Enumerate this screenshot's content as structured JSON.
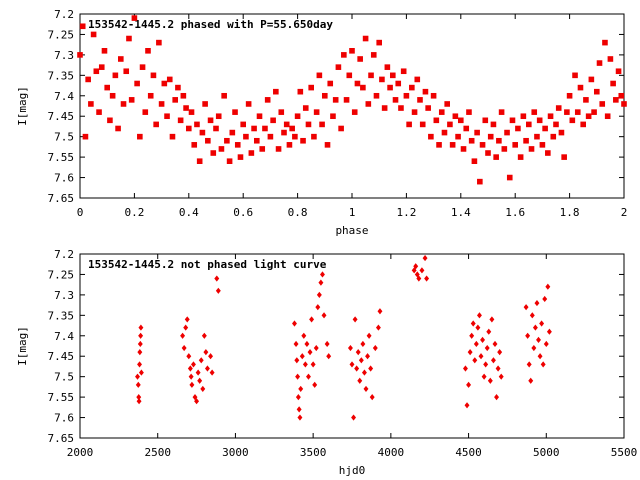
{
  "colors": {
    "points": "#ee0000",
    "frame": "#000000",
    "background": "#ffffff"
  },
  "chart_data": [
    {
      "type": "scatter",
      "title": "153542-1445.2 phased with P=55.650day",
      "xlabel": "phase",
      "ylabel": "I[mag]",
      "xlim": [
        0,
        2
      ],
      "ylim": [
        7.2,
        7.65
      ],
      "y_inverted": true,
      "grid": false,
      "x_ticks": [
        "0",
        "0.2",
        "0.4",
        "0.6",
        "0.8",
        "1",
        "1.2",
        "1.4",
        "1.6",
        "1.8",
        "2"
      ],
      "y_ticks": [
        "7.2",
        "7.25",
        "7.3",
        "7.35",
        "7.4",
        "7.45",
        "7.5",
        "7.55",
        "7.6",
        "7.65"
      ],
      "marker": "filled-square",
      "points": [
        [
          0.0,
          7.3
        ],
        [
          0.01,
          7.23
        ],
        [
          0.02,
          7.5
        ],
        [
          0.03,
          7.36
        ],
        [
          0.04,
          7.42
        ],
        [
          0.05,
          7.25
        ],
        [
          0.06,
          7.34
        ],
        [
          0.07,
          7.44
        ],
        [
          0.08,
          7.33
        ],
        [
          0.09,
          7.29
        ],
        [
          0.1,
          7.38
        ],
        [
          0.11,
          7.46
        ],
        [
          0.12,
          7.4
        ],
        [
          0.13,
          7.35
        ],
        [
          0.14,
          7.48
        ],
        [
          0.15,
          7.31
        ],
        [
          0.16,
          7.42
        ],
        [
          0.17,
          7.34
        ],
        [
          0.18,
          7.26
        ],
        [
          0.19,
          7.41
        ],
        [
          0.2,
          7.21
        ],
        [
          0.21,
          7.37
        ],
        [
          0.22,
          7.5
        ],
        [
          0.23,
          7.33
        ],
        [
          0.24,
          7.44
        ],
        [
          0.25,
          7.29
        ],
        [
          0.26,
          7.4
        ],
        [
          0.27,
          7.35
        ],
        [
          0.28,
          7.47
        ],
        [
          0.29,
          7.27
        ],
        [
          0.3,
          7.42
        ],
        [
          0.31,
          7.37
        ],
        [
          0.32,
          7.45
        ],
        [
          0.33,
          7.36
        ],
        [
          0.34,
          7.5
        ],
        [
          0.35,
          7.41
        ],
        [
          0.36,
          7.38
        ],
        [
          0.37,
          7.46
        ],
        [
          0.38,
          7.4
        ],
        [
          0.39,
          7.43
        ],
        [
          0.4,
          7.48
        ],
        [
          0.41,
          7.44
        ],
        [
          0.42,
          7.52
        ],
        [
          0.43,
          7.47
        ],
        [
          0.44,
          7.56
        ],
        [
          0.45,
          7.49
        ],
        [
          0.46,
          7.42
        ],
        [
          0.47,
          7.51
        ],
        [
          0.48,
          7.46
        ],
        [
          0.49,
          7.54
        ],
        [
          0.5,
          7.48
        ],
        [
          0.51,
          7.45
        ],
        [
          0.52,
          7.53
        ],
        [
          0.53,
          7.4
        ],
        [
          0.54,
          7.51
        ],
        [
          0.55,
          7.56
        ],
        [
          0.56,
          7.49
        ],
        [
          0.57,
          7.44
        ],
        [
          0.58,
          7.52
        ],
        [
          0.59,
          7.55
        ],
        [
          0.6,
          7.47
        ],
        [
          0.61,
          7.5
        ],
        [
          0.62,
          7.42
        ],
        [
          0.63,
          7.54
        ],
        [
          0.64,
          7.48
        ],
        [
          0.65,
          7.51
        ],
        [
          0.66,
          7.45
        ],
        [
          0.67,
          7.53
        ],
        [
          0.68,
          7.48
        ],
        [
          0.69,
          7.41
        ],
        [
          0.7,
          7.5
        ],
        [
          0.71,
          7.46
        ],
        [
          0.72,
          7.39
        ],
        [
          0.73,
          7.53
        ],
        [
          0.74,
          7.44
        ],
        [
          0.75,
          7.49
        ],
        [
          0.76,
          7.47
        ],
        [
          0.77,
          7.52
        ],
        [
          0.78,
          7.48
        ],
        [
          0.79,
          7.5
        ],
        [
          0.8,
          7.45
        ],
        [
          0.81,
          7.39
        ],
        [
          0.82,
          7.51
        ],
        [
          0.83,
          7.43
        ],
        [
          0.84,
          7.47
        ],
        [
          0.85,
          7.38
        ],
        [
          0.86,
          7.5
        ],
        [
          0.87,
          7.44
        ],
        [
          0.88,
          7.35
        ],
        [
          0.89,
          7.47
        ],
        [
          0.9,
          7.4
        ],
        [
          0.91,
          7.52
        ],
        [
          0.92,
          7.37
        ],
        [
          0.93,
          7.45
        ],
        [
          0.94,
          7.41
        ],
        [
          0.95,
          7.33
        ],
        [
          0.96,
          7.48
        ],
        [
          0.97,
          7.3
        ],
        [
          0.98,
          7.41
        ],
        [
          0.99,
          7.35
        ],
        [
          1.0,
          7.29
        ],
        [
          1.01,
          7.44
        ],
        [
          1.02,
          7.37
        ],
        [
          1.03,
          7.31
        ],
        [
          1.04,
          7.38
        ],
        [
          1.05,
          7.26
        ],
        [
          1.06,
          7.42
        ],
        [
          1.07,
          7.35
        ],
        [
          1.08,
          7.3
        ],
        [
          1.09,
          7.4
        ],
        [
          1.1,
          7.27
        ],
        [
          1.11,
          7.36
        ],
        [
          1.12,
          7.43
        ],
        [
          1.13,
          7.33
        ],
        [
          1.14,
          7.38
        ],
        [
          1.15,
          7.35
        ],
        [
          1.16,
          7.41
        ],
        [
          1.17,
          7.37
        ],
        [
          1.18,
          7.43
        ],
        [
          1.19,
          7.34
        ],
        [
          1.2,
          7.4
        ],
        [
          1.21,
          7.47
        ],
        [
          1.22,
          7.38
        ],
        [
          1.23,
          7.44
        ],
        [
          1.24,
          7.36
        ],
        [
          1.25,
          7.41
        ],
        [
          1.26,
          7.47
        ],
        [
          1.27,
          7.39
        ],
        [
          1.28,
          7.43
        ],
        [
          1.29,
          7.5
        ],
        [
          1.3,
          7.4
        ],
        [
          1.31,
          7.46
        ],
        [
          1.32,
          7.52
        ],
        [
          1.33,
          7.44
        ],
        [
          1.34,
          7.49
        ],
        [
          1.35,
          7.42
        ],
        [
          1.36,
          7.47
        ],
        [
          1.37,
          7.52
        ],
        [
          1.38,
          7.45
        ],
        [
          1.39,
          7.5
        ],
        [
          1.4,
          7.46
        ],
        [
          1.41,
          7.53
        ],
        [
          1.42,
          7.48
        ],
        [
          1.43,
          7.44
        ],
        [
          1.44,
          7.51
        ],
        [
          1.45,
          7.56
        ],
        [
          1.46,
          7.49
        ],
        [
          1.47,
          7.61
        ],
        [
          1.48,
          7.52
        ],
        [
          1.49,
          7.46
        ],
        [
          1.5,
          7.54
        ],
        [
          1.51,
          7.5
        ],
        [
          1.52,
          7.47
        ],
        [
          1.53,
          7.55
        ],
        [
          1.54,
          7.51
        ],
        [
          1.55,
          7.44
        ],
        [
          1.56,
          7.53
        ],
        [
          1.57,
          7.49
        ],
        [
          1.58,
          7.6
        ],
        [
          1.59,
          7.46
        ],
        [
          1.6,
          7.52
        ],
        [
          1.61,
          7.48
        ],
        [
          1.62,
          7.55
        ],
        [
          1.63,
          7.45
        ],
        [
          1.64,
          7.51
        ],
        [
          1.65,
          7.47
        ],
        [
          1.66,
          7.53
        ],
        [
          1.67,
          7.44
        ],
        [
          1.68,
          7.5
        ],
        [
          1.69,
          7.46
        ],
        [
          1.7,
          7.52
        ],
        [
          1.71,
          7.48
        ],
        [
          1.72,
          7.54
        ],
        [
          1.73,
          7.45
        ],
        [
          1.74,
          7.5
        ],
        [
          1.75,
          7.47
        ],
        [
          1.76,
          7.43
        ],
        [
          1.77,
          7.49
        ],
        [
          1.78,
          7.55
        ],
        [
          1.79,
          7.44
        ],
        [
          1.8,
          7.4
        ],
        [
          1.81,
          7.46
        ],
        [
          1.82,
          7.35
        ],
        [
          1.83,
          7.44
        ],
        [
          1.84,
          7.38
        ],
        [
          1.85,
          7.47
        ],
        [
          1.86,
          7.41
        ],
        [
          1.87,
          7.45
        ],
        [
          1.88,
          7.36
        ],
        [
          1.89,
          7.44
        ],
        [
          1.9,
          7.39
        ],
        [
          1.91,
          7.32
        ],
        [
          1.92,
          7.42
        ],
        [
          1.93,
          7.27
        ],
        [
          1.94,
          7.45
        ],
        [
          1.95,
          7.31
        ],
        [
          1.96,
          7.37
        ],
        [
          1.97,
          7.41
        ],
        [
          1.98,
          7.34
        ],
        [
          1.99,
          7.4
        ],
        [
          2.0,
          7.42
        ]
      ]
    },
    {
      "type": "scatter",
      "title": "153542-1445.2 not phased light curve",
      "xlabel": "hjd0",
      "ylabel": "I[mag]",
      "xlim": [
        2000,
        5500
      ],
      "ylim": [
        7.2,
        7.65
      ],
      "y_inverted": true,
      "grid": false,
      "x_ticks": [
        "2000",
        "2500",
        "3000",
        "3500",
        "4000",
        "4500",
        "5000",
        "5500"
      ],
      "y_ticks": [
        "7.2",
        "7.25",
        "7.3",
        "7.35",
        "7.4",
        "7.45",
        "7.5",
        "7.55",
        "7.6",
        "7.65"
      ],
      "marker": "filled-diamond",
      "points": [
        [
          2370,
          7.5
        ],
        [
          2375,
          7.52
        ],
        [
          2378,
          7.55
        ],
        [
          2380,
          7.56
        ],
        [
          2383,
          7.47
        ],
        [
          2385,
          7.44
        ],
        [
          2388,
          7.42
        ],
        [
          2390,
          7.4
        ],
        [
          2392,
          7.38
        ],
        [
          2395,
          7.49
        ],
        [
          2660,
          7.4
        ],
        [
          2670,
          7.43
        ],
        [
          2680,
          7.38
        ],
        [
          2690,
          7.36
        ],
        [
          2700,
          7.45
        ],
        [
          2710,
          7.48
        ],
        [
          2715,
          7.5
        ],
        [
          2720,
          7.52
        ],
        [
          2730,
          7.47
        ],
        [
          2740,
          7.55
        ],
        [
          2750,
          7.56
        ],
        [
          2760,
          7.49
        ],
        [
          2770,
          7.51
        ],
        [
          2780,
          7.46
        ],
        [
          2790,
          7.53
        ],
        [
          2800,
          7.4
        ],
        [
          2810,
          7.44
        ],
        [
          2820,
          7.48
        ],
        [
          2840,
          7.45
        ],
        [
          2850,
          7.49
        ],
        [
          2880,
          7.26
        ],
        [
          2890,
          7.29
        ],
        [
          3380,
          7.37
        ],
        [
          3390,
          7.42
        ],
        [
          3395,
          7.46
        ],
        [
          3400,
          7.5
        ],
        [
          3405,
          7.55
        ],
        [
          3410,
          7.58
        ],
        [
          3415,
          7.6
        ],
        [
          3420,
          7.53
        ],
        [
          3430,
          7.45
        ],
        [
          3440,
          7.4
        ],
        [
          3450,
          7.47
        ],
        [
          3460,
          7.42
        ],
        [
          3470,
          7.5
        ],
        [
          3480,
          7.44
        ],
        [
          3490,
          7.36
        ],
        [
          3500,
          7.47
        ],
        [
          3510,
          7.52
        ],
        [
          3520,
          7.43
        ],
        [
          3530,
          7.33
        ],
        [
          3540,
          7.3
        ],
        [
          3550,
          7.27
        ],
        [
          3560,
          7.25
        ],
        [
          3570,
          7.35
        ],
        [
          3590,
          7.42
        ],
        [
          3600,
          7.45
        ],
        [
          3740,
          7.43
        ],
        [
          3750,
          7.47
        ],
        [
          3760,
          7.6
        ],
        [
          3770,
          7.36
        ],
        [
          3780,
          7.48
        ],
        [
          3790,
          7.44
        ],
        [
          3800,
          7.51
        ],
        [
          3810,
          7.46
        ],
        [
          3820,
          7.42
        ],
        [
          3830,
          7.49
        ],
        [
          3840,
          7.53
        ],
        [
          3850,
          7.45
        ],
        [
          3860,
          7.4
        ],
        [
          3870,
          7.48
        ],
        [
          3880,
          7.55
        ],
        [
          3900,
          7.43
        ],
        [
          3920,
          7.38
        ],
        [
          3930,
          7.34
        ],
        [
          4150,
          7.24
        ],
        [
          4160,
          7.23
        ],
        [
          4170,
          7.25
        ],
        [
          4180,
          7.26
        ],
        [
          4200,
          7.24
        ],
        [
          4220,
          7.21
        ],
        [
          4230,
          7.26
        ],
        [
          4480,
          7.48
        ],
        [
          4490,
          7.57
        ],
        [
          4500,
          7.52
        ],
        [
          4510,
          7.44
        ],
        [
          4520,
          7.4
        ],
        [
          4530,
          7.37
        ],
        [
          4540,
          7.46
        ],
        [
          4550,
          7.42
        ],
        [
          4560,
          7.38
        ],
        [
          4570,
          7.35
        ],
        [
          4580,
          7.45
        ],
        [
          4590,
          7.41
        ],
        [
          4600,
          7.5
        ],
        [
          4610,
          7.47
        ],
        [
          4620,
          7.43
        ],
        [
          4630,
          7.39
        ],
        [
          4640,
          7.51
        ],
        [
          4650,
          7.36
        ],
        [
          4660,
          7.46
        ],
        [
          4670,
          7.42
        ],
        [
          4680,
          7.55
        ],
        [
          4690,
          7.48
        ],
        [
          4700,
          7.44
        ],
        [
          4710,
          7.5
        ],
        [
          4870,
          7.33
        ],
        [
          4880,
          7.4
        ],
        [
          4890,
          7.47
        ],
        [
          4900,
          7.51
        ],
        [
          4910,
          7.35
        ],
        [
          4920,
          7.43
        ],
        [
          4930,
          7.38
        ],
        [
          4940,
          7.32
        ],
        [
          4950,
          7.41
        ],
        [
          4960,
          7.45
        ],
        [
          4970,
          7.37
        ],
        [
          4980,
          7.47
        ],
        [
          4990,
          7.31
        ],
        [
          5000,
          7.42
        ],
        [
          5010,
          7.28
        ],
        [
          5020,
          7.39
        ]
      ]
    }
  ]
}
